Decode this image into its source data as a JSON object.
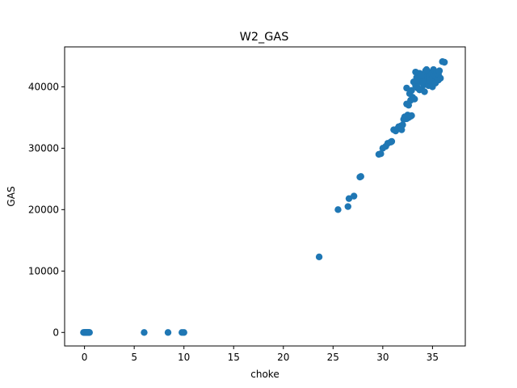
{
  "chart_data": {
    "type": "scatter",
    "title": "W2_GAS",
    "xlabel": "choke",
    "ylabel": "GAS",
    "xlim": [
      -2,
      38.3
    ],
    "ylim": [
      -2200,
      46500
    ],
    "xticks": [
      0,
      5,
      10,
      15,
      20,
      25,
      30,
      35
    ],
    "yticks": [
      0,
      10000,
      20000,
      30000,
      40000
    ],
    "grid": false,
    "marker_color": "#1f77b4",
    "series": [
      {
        "points": [
          [
            -0.1,
            0
          ],
          [
            0.0,
            0
          ],
          [
            0.05,
            0
          ],
          [
            0.1,
            0
          ],
          [
            0.15,
            0
          ],
          [
            0.2,
            0
          ],
          [
            0.25,
            0
          ],
          [
            0.3,
            0
          ],
          [
            0.35,
            0
          ],
          [
            0.4,
            0
          ],
          [
            0.45,
            0
          ],
          [
            0.5,
            0
          ],
          [
            6.0,
            0
          ],
          [
            8.4,
            0
          ],
          [
            9.8,
            0
          ],
          [
            10.0,
            0
          ],
          [
            23.6,
            12300
          ],
          [
            25.5,
            20000
          ],
          [
            26.5,
            20500
          ],
          [
            26.6,
            21800
          ],
          [
            27.1,
            22200
          ],
          [
            27.7,
            25300
          ],
          [
            27.8,
            25400
          ],
          [
            29.6,
            29000
          ],
          [
            29.8,
            29100
          ],
          [
            30.0,
            30000
          ],
          [
            30.3,
            30300
          ],
          [
            30.5,
            30800
          ],
          [
            30.8,
            31000
          ],
          [
            30.9,
            31100
          ],
          [
            31.1,
            33000
          ],
          [
            31.3,
            32800
          ],
          [
            31.5,
            33200
          ],
          [
            31.6,
            33500
          ],
          [
            31.8,
            33600
          ],
          [
            31.9,
            33000
          ],
          [
            32.0,
            33800
          ],
          [
            32.1,
            34700
          ],
          [
            32.2,
            35100
          ],
          [
            32.4,
            34800
          ],
          [
            32.5,
            35400
          ],
          [
            32.6,
            35000
          ],
          [
            32.8,
            35200
          ],
          [
            32.9,
            35300
          ],
          [
            32.4,
            37200
          ],
          [
            32.6,
            37000
          ],
          [
            32.8,
            37800
          ],
          [
            33.0,
            38300
          ],
          [
            33.2,
            38000
          ],
          [
            32.4,
            39800
          ],
          [
            32.7,
            38900
          ],
          [
            32.9,
            39400
          ],
          [
            33.1,
            40800
          ],
          [
            33.3,
            40200
          ],
          [
            33.4,
            41500
          ],
          [
            33.5,
            39800
          ],
          [
            33.6,
            40700
          ],
          [
            33.7,
            42200
          ],
          [
            33.8,
            41100
          ],
          [
            33.9,
            39600
          ],
          [
            34.0,
            42000
          ],
          [
            34.1,
            40300
          ],
          [
            34.2,
            41700
          ],
          [
            34.3,
            42600
          ],
          [
            34.4,
            40500
          ],
          [
            34.5,
            41300
          ],
          [
            34.6,
            42400
          ],
          [
            34.7,
            41800
          ],
          [
            34.8,
            40700
          ],
          [
            34.9,
            42100
          ],
          [
            35.0,
            41500
          ],
          [
            35.1,
            42800
          ],
          [
            35.2,
            40900
          ],
          [
            35.3,
            41700
          ],
          [
            35.4,
            42300
          ],
          [
            35.5,
            41200
          ],
          [
            35.6,
            42000
          ],
          [
            35.7,
            42600
          ],
          [
            35.8,
            41400
          ],
          [
            33.5,
            41000
          ],
          [
            33.9,
            41800
          ],
          [
            34.2,
            39200
          ],
          [
            34.6,
            40200
          ],
          [
            35.0,
            40000
          ],
          [
            33.3,
            42400
          ],
          [
            34.0,
            40800
          ],
          [
            34.7,
            41000
          ],
          [
            35.3,
            40600
          ],
          [
            35.6,
            41100
          ],
          [
            33.7,
            39500
          ],
          [
            34.4,
            42800
          ],
          [
            36.0,
            44100
          ],
          [
            36.2,
            44000
          ]
        ]
      }
    ]
  }
}
